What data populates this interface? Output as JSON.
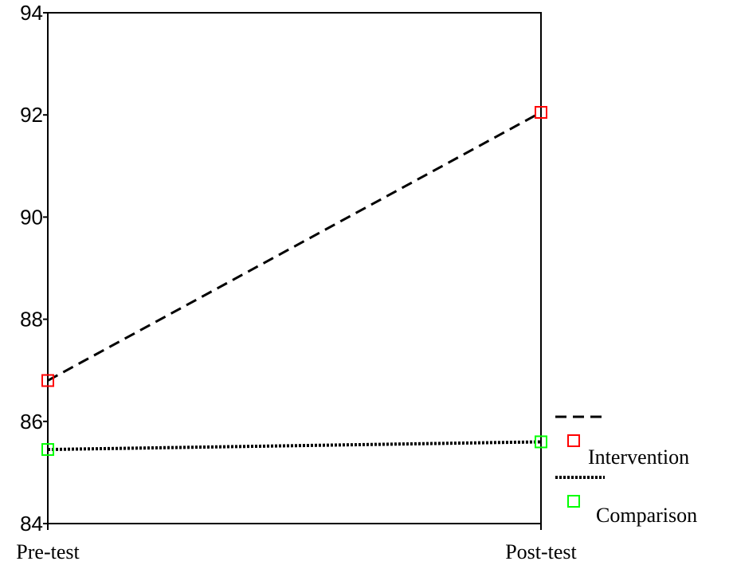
{
  "chart_data": {
    "type": "line",
    "categories": [
      "Pre-test",
      "Post-test"
    ],
    "series": [
      {
        "name": "Intervention",
        "values": [
          86.8,
          92.05
        ],
        "color": "#ff0000",
        "line_style": "dashed",
        "marker": "square"
      },
      {
        "name": "Comparison",
        "values": [
          85.45,
          85.6
        ],
        "color": "#00ff00",
        "line_style": "dotted",
        "marker": "square"
      }
    ],
    "title": "",
    "xlabel": "",
    "ylabel": "",
    "ylim": [
      84,
      94
    ],
    "yticks": [
      "84",
      "86",
      "88",
      "90",
      "92",
      "94"
    ],
    "grid": false,
    "legend_position": "bottom-right"
  }
}
